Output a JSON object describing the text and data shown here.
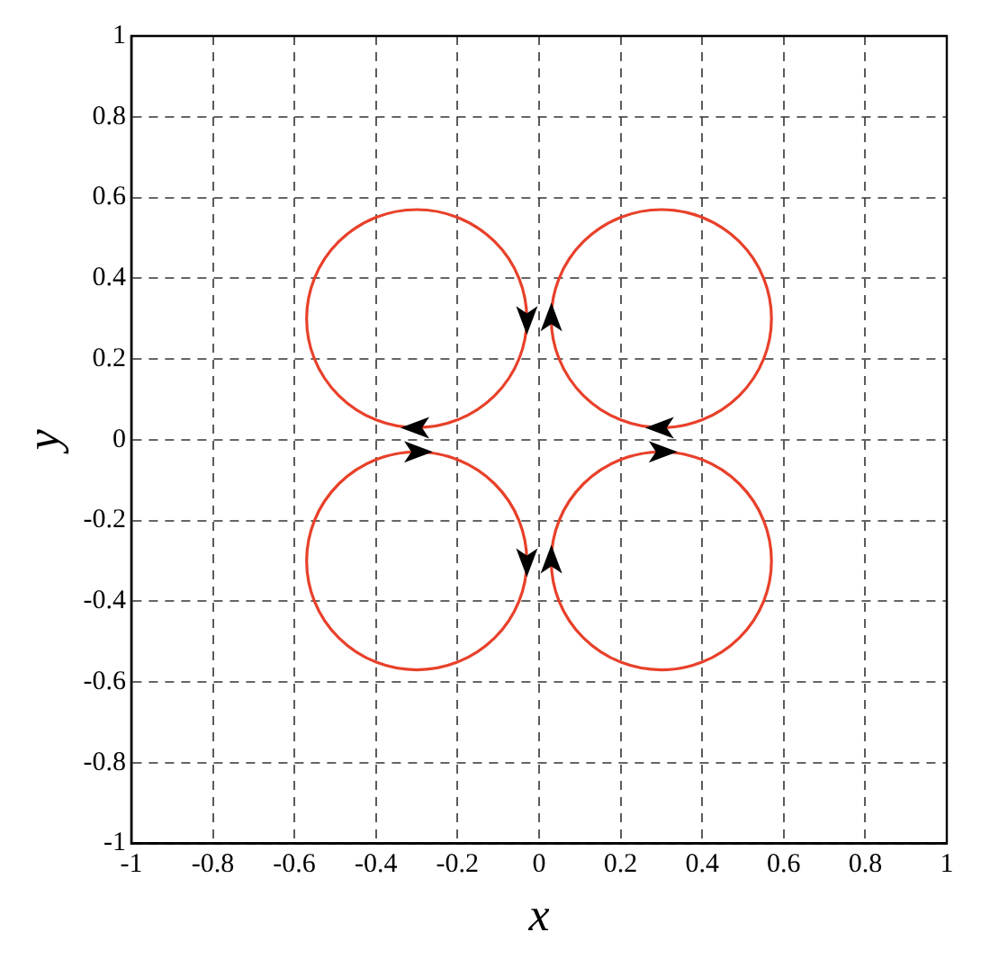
{
  "chart_data": {
    "type": "line",
    "xlabel": "x",
    "ylabel": "y",
    "xlim": [
      -1,
      1
    ],
    "ylim": [
      -1,
      1
    ],
    "xticks": [
      -1,
      -0.8,
      -0.6,
      -0.4,
      -0.2,
      0,
      0.2,
      0.4,
      0.6,
      0.8,
      1
    ],
    "yticks": [
      -1,
      -0.8,
      -0.6,
      -0.4,
      -0.2,
      0,
      0.2,
      0.4,
      0.6,
      0.8,
      1
    ],
    "grid": true,
    "legend": false
  }
}
